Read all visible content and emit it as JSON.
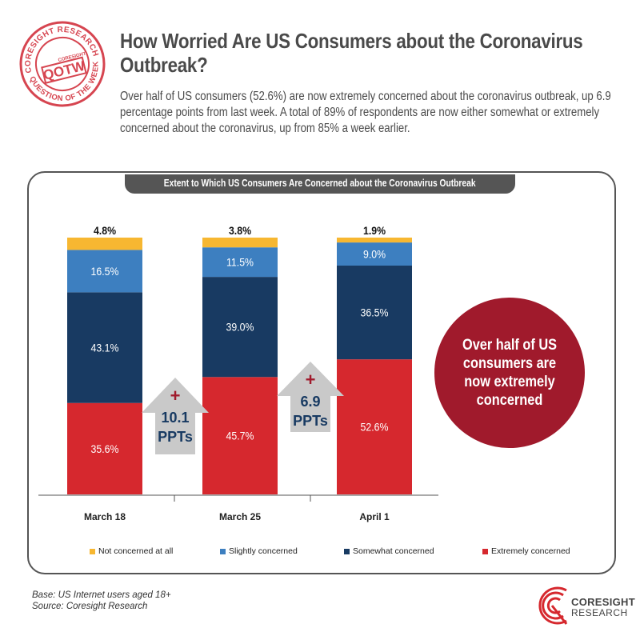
{
  "stamp": {
    "ring_text_top": "CORESIGHT RESEARCH",
    "ring_text_bottom": "QUESTION OF THE WEEK",
    "center_text": "QOTW",
    "mini_logo": "CORESIGHT"
  },
  "header": {
    "title": "How Worried Are US Consumers about the Coronavirus Outbreak?",
    "subtitle": "Over half of US consumers (52.6%) are now extremely concerned about the coronavirus outbreak, up 6.9 percentage points from last week. A total of 89% of respondents are now either somewhat or extremely concerned about the coronavirus, up from 85% a week earlier."
  },
  "panel": {
    "header": "Extent to Which US Consumers Are Concerned about the Coronavirus Outbreak"
  },
  "chart_data": {
    "type": "bar",
    "stacked": true,
    "title": "Extent to Which US Consumers Are Concerned about the Coronavirus Outbreak",
    "categories": [
      "March 18",
      "March 25",
      "April 1"
    ],
    "series": [
      {
        "name": "Extremely concerned",
        "color": "#d6282e",
        "values": [
          35.6,
          45.7,
          52.6
        ],
        "labels": [
          "35.6%",
          "45.7%",
          "52.6%"
        ]
      },
      {
        "name": "Somewhat concerned",
        "color": "#183a62",
        "values": [
          43.1,
          39.0,
          36.5
        ],
        "labels": [
          "43.1%",
          "39.0%",
          "36.5%"
        ]
      },
      {
        "name": "Slightly concerned",
        "color": "#3d7fc0",
        "values": [
          16.5,
          11.5,
          9.0
        ],
        "labels": [
          "16.5%",
          "11.5%",
          "9.0%"
        ]
      },
      {
        "name": "Not concerned at all",
        "color": "#f7b731",
        "values": [
          4.8,
          3.8,
          1.9
        ],
        "labels": [
          "4.8%",
          "3.8%",
          "1.9%"
        ]
      }
    ],
    "ylim": [
      0,
      100
    ],
    "legend_position": "bottom",
    "annotations": [
      {
        "lines": [
          "+",
          "10.1",
          "PPTs"
        ],
        "between": [
          "March 18",
          "March 25"
        ]
      },
      {
        "lines": [
          "+",
          "6.9",
          "PPTs"
        ],
        "between": [
          "March 25",
          "April 1"
        ]
      }
    ]
  },
  "callout": {
    "text": "Over half of US consumers are now extremely concerned",
    "color": "#a01a2c"
  },
  "footnote": {
    "base": "Base: US Internet users aged 18+",
    "source": "Source: Coresight Research"
  },
  "logo": {
    "line1": "CORESIGHT",
    "line2": "RESEARCH"
  }
}
